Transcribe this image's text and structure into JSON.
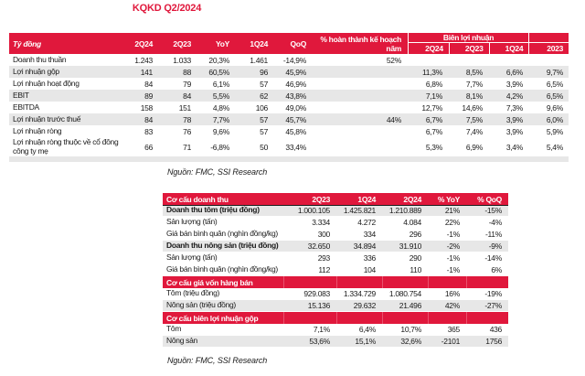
{
  "title": "KQKD Q2/2024",
  "source_note": "Nguồn: FMC, SSI Research",
  "colors": {
    "brand_red": "#E0183C",
    "stripe_gray": "#E7E7E7",
    "text": "#1A1A1A"
  },
  "table1": {
    "unit_header": "Tỷ đồng",
    "period_headers": [
      "2Q24",
      "2Q23",
      "YoY",
      "1Q24",
      "QoQ"
    ],
    "plan_header_lines": [
      "% hoàn thành kế hoạch",
      "năm"
    ],
    "margin_group_header": "Biên lợi nhuận",
    "margin_headers": [
      "2Q24",
      "2Q23",
      "1Q24",
      "2023"
    ],
    "rows": [
      {
        "label": "Doanh thu thuần",
        "values": [
          "1.243",
          "1.033",
          "20,3%",
          "1.461",
          "-14,9%"
        ],
        "plan": "52%",
        "margins": [
          "",
          "",
          "",
          ""
        ]
      },
      {
        "label": "Lợi nhuận gộp",
        "values": [
          "141",
          "88",
          "60,5%",
          "96",
          "45,9%"
        ],
        "plan": "",
        "margins": [
          "11,3%",
          "8,5%",
          "6,6%",
          "9,7%"
        ]
      },
      {
        "label": "Lợi nhuận hoạt động",
        "values": [
          "84",
          "79",
          "6,1%",
          "57",
          "46,9%"
        ],
        "plan": "",
        "margins": [
          "6,8%",
          "7,7%",
          "3,9%",
          "6,5%"
        ]
      },
      {
        "label": "EBIT",
        "values": [
          "89",
          "84",
          "5,5%",
          "62",
          "43,8%"
        ],
        "plan": "",
        "margins": [
          "7,1%",
          "8,1%",
          "4,2%",
          "6,5%"
        ]
      },
      {
        "label": "EBITDA",
        "values": [
          "158",
          "151",
          "4,8%",
          "106",
          "49,0%"
        ],
        "plan": "",
        "margins": [
          "12,7%",
          "14,6%",
          "7,3%",
          "9,6%"
        ]
      },
      {
        "label": "Lợi nhuận trước thuế",
        "values": [
          "84",
          "78",
          "7,7%",
          "57",
          "45,7%"
        ],
        "plan": "44%",
        "margins": [
          "6,7%",
          "7,5%",
          "3,9%",
          "6,0%"
        ]
      },
      {
        "label": "Lợi nhuận ròng",
        "values": [
          "83",
          "76",
          "9,6%",
          "57",
          "45,8%"
        ],
        "plan": "",
        "margins": [
          "6,7%",
          "7,4%",
          "3,9%",
          "5,9%"
        ]
      },
      {
        "label": "Lợi nhuận ròng thuộc về cổ đông công ty mẹ",
        "values": [
          "66",
          "71",
          "-6,8%",
          "50",
          "33,4%"
        ],
        "plan": "",
        "margins": [
          "5,3%",
          "6,9%",
          "3,4%",
          "5,4%"
        ]
      }
    ]
  },
  "table2": {
    "column_headers": [
      "2Q23",
      "1Q24",
      "2Q24",
      "% YoY",
      "% QoQ"
    ],
    "sections": [
      {
        "header": "Cơ cấu doanh thu",
        "rows": [
          {
            "label": "Doanh thu tôm (triệu đồng)",
            "bold": true,
            "shaded": true,
            "values": [
              "1.000.105",
              "1.425.821",
              "1.210.889",
              "21%",
              "-15%"
            ]
          },
          {
            "label": "Sản lượng (tấn)",
            "values": [
              "3.334",
              "4.272",
              "4.084",
              "22%",
              "-4%"
            ]
          },
          {
            "label": "Giá bán bình quân (nghìn đồng/kg)",
            "values": [
              "300",
              "334",
              "296",
              "-1%",
              "-11%"
            ]
          },
          {
            "label": "Doanh thu nông sản (triệu đồng)",
            "bold": true,
            "shaded": true,
            "values": [
              "32.650",
              "34.894",
              "31.910",
              "-2%",
              "-9%"
            ]
          },
          {
            "label": "Sản lượng (tấn)",
            "values": [
              "293",
              "336",
              "290",
              "-1%",
              "-14%"
            ]
          },
          {
            "label": "Giá bán bình quân (nghìn đồng/kg)",
            "values": [
              "112",
              "104",
              "110",
              "-1%",
              "6%"
            ]
          }
        ]
      },
      {
        "header": "Cơ cấu giá vốn hàng bán",
        "rows": [
          {
            "label": "Tôm (triệu đồng)",
            "values": [
              "929.083",
              "1.334.729",
              "1.080.754",
              "16%",
              "-19%"
            ]
          },
          {
            "label": "Nông sản (triệu đồng)",
            "shaded": true,
            "values": [
              "15.136",
              "29.632",
              "21.496",
              "42%",
              "-27%"
            ]
          }
        ]
      },
      {
        "header": "Cơ cấu biên lợi nhuận gộp",
        "rows": [
          {
            "label": "Tôm",
            "values": [
              "7,1%",
              "6,4%",
              "10,7%",
              "365",
              "436"
            ]
          },
          {
            "label": "Nông sản",
            "shaded": true,
            "values": [
              "53,6%",
              "15,1%",
              "32,6%",
              "-2101",
              "1756"
            ]
          }
        ]
      }
    ]
  }
}
